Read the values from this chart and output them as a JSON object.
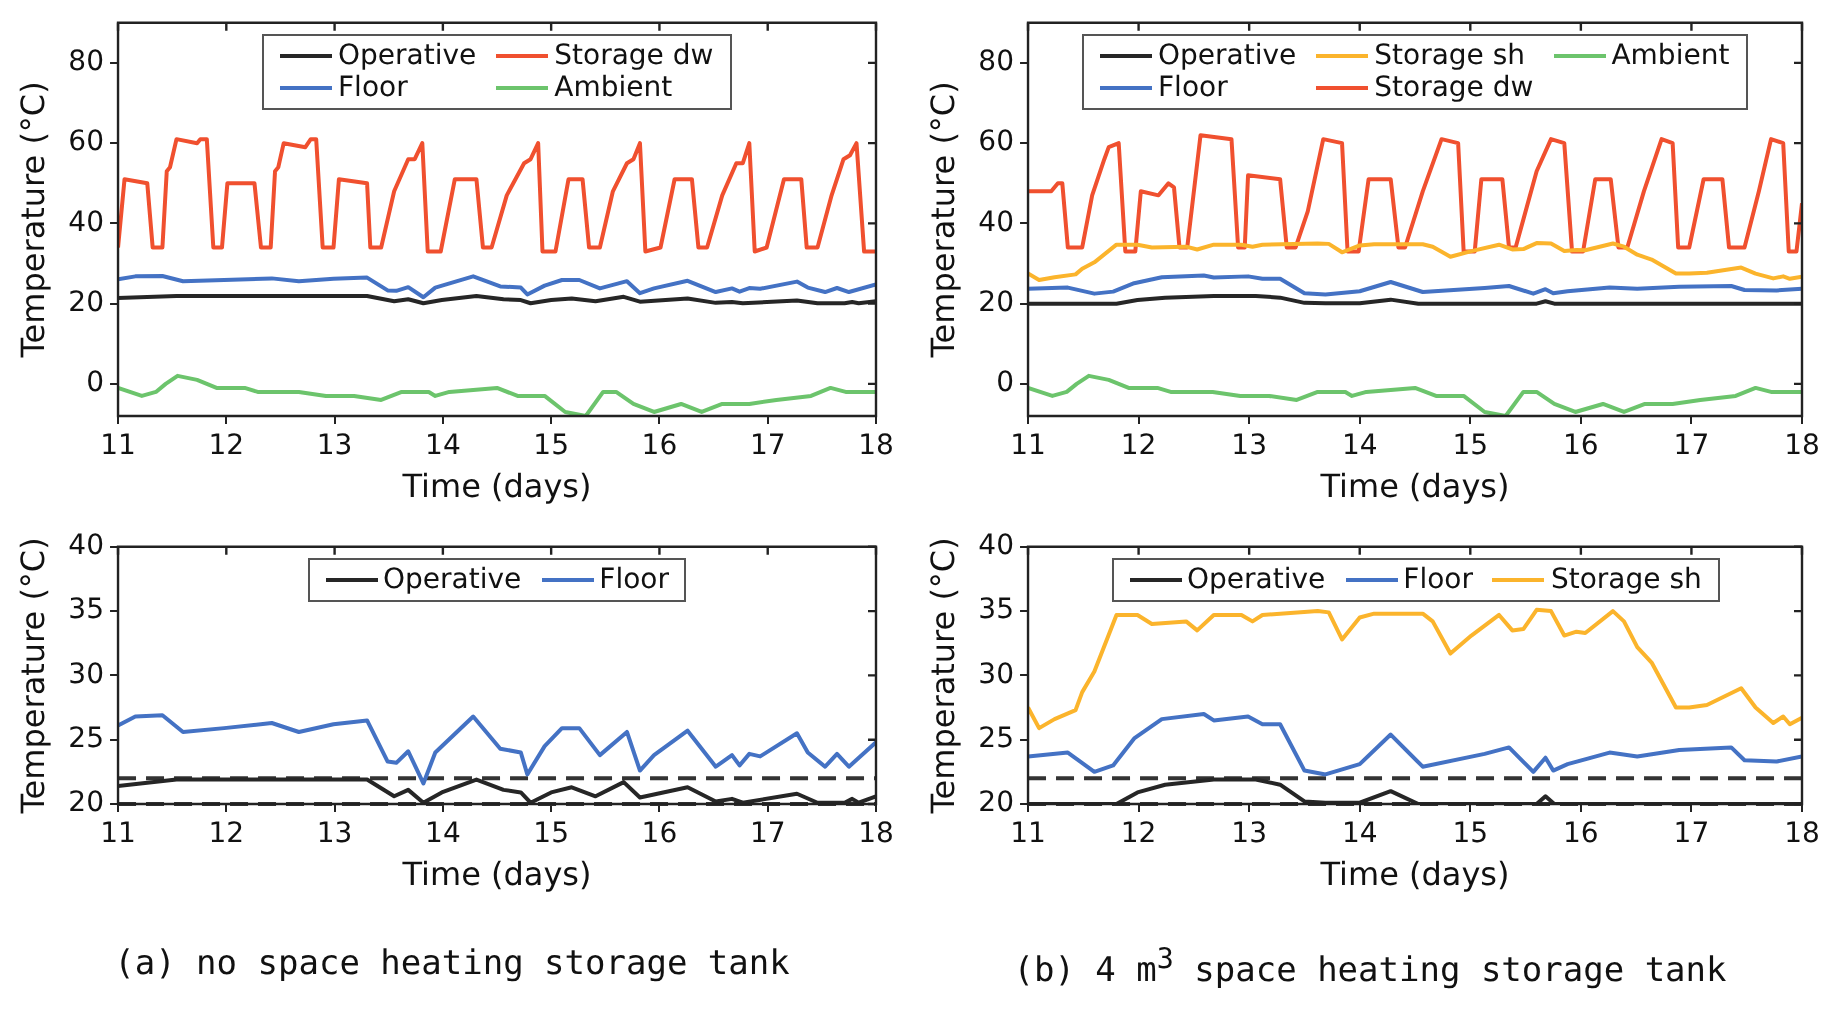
{
  "chart_data": [
    {
      "type": "line",
      "xlabel": "Time (days)",
      "ylabel": "Temperature (°C)",
      "xlim": [
        11,
        18
      ],
      "xticks": [
        11,
        12,
        13,
        14,
        15,
        16,
        17,
        18
      ],
      "ylim": [
        -8,
        90
      ],
      "yticks": [
        0,
        20,
        40,
        60,
        80
      ],
      "grid": false,
      "legend": "top",
      "line_style": "solid",
      "marker": "none",
      "series": [
        {
          "name": "Operative",
          "color": "#262626",
          "x": [
            11.0,
            11.54,
            13.3,
            13.55,
            13.68,
            13.82,
            13.99,
            14.31,
            14.56,
            14.72,
            14.81,
            15.0,
            15.19,
            15.41,
            15.67,
            15.82,
            16.26,
            16.52,
            16.67,
            16.77,
            17.27,
            17.46,
            17.71,
            17.78,
            17.84,
            18.0
          ],
          "values": [
            21.4,
            21.9,
            21.9,
            20.6,
            21.1,
            20.1,
            20.9,
            21.9,
            21.1,
            20.9,
            20.1,
            20.9,
            21.3,
            20.6,
            21.7,
            20.5,
            21.3,
            20.2,
            20.4,
            20.1,
            20.8,
            20.1,
            20.1,
            20.4,
            20.1,
            20.6
          ]
        },
        {
          "name": "Floor",
          "color": "#4472c4",
          "x": [
            11.0,
            11.16,
            11.41,
            11.6,
            11.98,
            12.42,
            12.67,
            12.99,
            13.3,
            13.49,
            13.57,
            13.68,
            13.82,
            13.93,
            14.28,
            14.53,
            14.72,
            14.78,
            14.94,
            15.1,
            15.26,
            15.45,
            15.7,
            15.82,
            15.95,
            16.26,
            16.52,
            16.67,
            16.74,
            16.83,
            16.93,
            17.27,
            17.37,
            17.53,
            17.64,
            17.75,
            18.0
          ],
          "values": [
            26.1,
            26.8,
            26.9,
            25.6,
            25.9,
            26.3,
            25.6,
            26.2,
            26.5,
            23.3,
            23.2,
            24.1,
            21.6,
            24.0,
            26.8,
            24.3,
            24.0,
            22.3,
            24.5,
            25.9,
            25.9,
            23.8,
            25.6,
            22.6,
            23.8,
            25.7,
            22.9,
            23.8,
            23.0,
            23.9,
            23.7,
            25.5,
            24.0,
            22.9,
            23.9,
            22.9,
            24.8
          ]
        },
        {
          "name": "Storage dw",
          "color": "#f0502f",
          "x": [
            11.0,
            11.06,
            11.27,
            11.32,
            11.41,
            11.45,
            11.48,
            11.54,
            11.73,
            11.76,
            11.82,
            11.88,
            11.96,
            12.01,
            12.26,
            12.32,
            12.41,
            12.45,
            12.48,
            12.53,
            12.73,
            12.78,
            12.83,
            12.89,
            12.99,
            13.04,
            13.3,
            13.33,
            13.43,
            13.55,
            13.68,
            13.74,
            13.81,
            13.86,
            13.98,
            14.11,
            14.31,
            14.37,
            14.45,
            14.59,
            14.75,
            14.81,
            14.88,
            14.92,
            15.04,
            15.16,
            15.29,
            15.35,
            15.45,
            15.57,
            15.7,
            15.76,
            15.82,
            15.87,
            16.01,
            16.14,
            16.3,
            16.36,
            16.44,
            16.58,
            16.71,
            16.77,
            16.83,
            16.88,
            16.99,
            17.15,
            17.31,
            17.36,
            17.46,
            17.59,
            17.7,
            17.76,
            17.82,
            17.89,
            18.0
          ],
          "values": [
            34,
            51,
            50,
            34,
            34,
            53,
            54,
            61,
            60,
            61,
            61,
            34,
            34,
            50,
            50,
            34,
            34,
            53,
            54,
            60,
            59,
            61,
            61,
            34,
            34,
            51,
            50,
            34,
            34,
            48,
            56,
            56,
            60,
            33,
            33,
            51,
            51,
            34,
            34,
            47,
            55,
            56,
            60,
            33,
            33,
            51,
            51,
            34,
            34,
            48,
            55,
            56,
            60,
            33,
            34,
            51,
            51,
            34,
            34,
            47,
            55,
            55,
            60,
            33,
            34,
            51,
            51,
            34,
            34,
            47,
            56,
            57,
            60,
            33,
            33
          ]
        },
        {
          "name": "Ambient",
          "color": "#6cc46c",
          "x": [
            11.0,
            11.22,
            11.35,
            11.44,
            11.55,
            11.73,
            11.91,
            12.17,
            12.29,
            12.67,
            12.92,
            13.18,
            13.43,
            13.62,
            13.87,
            13.93,
            14.06,
            14.5,
            14.69,
            14.94,
            15.13,
            15.32,
            15.48,
            15.6,
            15.76,
            15.95,
            16.2,
            16.39,
            16.58,
            16.83,
            17.08,
            17.4,
            17.58,
            17.72,
            18.0
          ],
          "values": [
            -1,
            -3,
            -2,
            0,
            2,
            1,
            -1,
            -1,
            -2,
            -2,
            -3,
            -3,
            -4,
            -2,
            -2,
            -3,
            -2,
            -1,
            -3,
            -3,
            -7,
            -8,
            -2,
            -2,
            -5,
            -7,
            -5,
            -7,
            -5,
            -5,
            -4,
            -3,
            -1,
            -2,
            -2
          ]
        }
      ]
    },
    {
      "type": "line",
      "xlabel": "Time (days)",
      "ylabel": "Temperature (°C)",
      "xlim": [
        11,
        18
      ],
      "xticks": [
        11,
        12,
        13,
        14,
        15,
        16,
        17,
        18
      ],
      "ylim": [
        -8,
        90
      ],
      "yticks": [
        0,
        20,
        40,
        60,
        80
      ],
      "grid": false,
      "legend": "top",
      "line_style": "solid",
      "marker": "none",
      "series": [
        {
          "name": "Operative",
          "color": "#262626",
          "x": [
            11.0,
            11.8,
            11.99,
            12.24,
            12.68,
            13.06,
            13.28,
            13.5,
            13.69,
            14.0,
            14.28,
            14.53,
            15.6,
            15.68,
            15.76,
            18.0
          ],
          "values": [
            20.0,
            20.0,
            20.9,
            21.5,
            21.9,
            21.9,
            21.5,
            20.2,
            20.1,
            20.1,
            21.0,
            20.0,
            20.0,
            20.6,
            20.0,
            20.0
          ]
        },
        {
          "name": "Floor",
          "color": "#4472c4",
          "x": [
            11.0,
            11.36,
            11.6,
            11.77,
            11.96,
            12.21,
            12.59,
            12.68,
            12.99,
            13.12,
            13.28,
            13.5,
            13.69,
            14.0,
            14.28,
            14.57,
            15.13,
            15.35,
            15.57,
            15.68,
            15.75,
            15.88,
            16.26,
            16.51,
            16.89,
            17.36,
            17.48,
            17.77,
            18.0
          ],
          "values": [
            23.7,
            24.0,
            22.5,
            23.0,
            25.1,
            26.6,
            27.0,
            26.5,
            26.8,
            26.2,
            26.2,
            22.6,
            22.3,
            23.1,
            25.4,
            22.9,
            23.9,
            24.4,
            22.5,
            23.6,
            22.6,
            23.1,
            24.0,
            23.7,
            24.2,
            24.4,
            23.4,
            23.3,
            23.7
          ]
        },
        {
          "name": "Storage sh",
          "color": "#fbb42c",
          "x": [
            11.0,
            11.1,
            11.24,
            11.43,
            11.49,
            11.6,
            11.8,
            11.99,
            12.12,
            12.43,
            12.53,
            12.68,
            12.93,
            13.03,
            13.12,
            13.62,
            13.72,
            13.84,
            14.0,
            14.13,
            14.57,
            14.66,
            14.82,
            15.01,
            15.26,
            15.38,
            15.48,
            15.6,
            15.73,
            15.85,
            15.96,
            16.04,
            16.29,
            16.39,
            16.51,
            16.64,
            16.86,
            16.98,
            17.14,
            17.45,
            17.58,
            17.74,
            17.83,
            17.89,
            18.0
          ],
          "values": [
            27.5,
            25.9,
            26.6,
            27.3,
            28.7,
            30.3,
            34.7,
            34.7,
            34.0,
            34.2,
            33.5,
            34.7,
            34.7,
            34.2,
            34.7,
            35.0,
            34.9,
            32.8,
            34.5,
            34.8,
            34.8,
            34.2,
            31.7,
            33.1,
            34.7,
            33.5,
            33.6,
            35.1,
            35.0,
            33.1,
            33.4,
            33.3,
            35.0,
            34.2,
            32.2,
            31.0,
            27.5,
            27.5,
            27.7,
            29.0,
            27.5,
            26.3,
            26.8,
            26.2,
            26.7
          ]
        },
        {
          "name": "Storage dw",
          "color": "#f0502f",
          "x": [
            11.0,
            11.21,
            11.27,
            11.31,
            11.36,
            11.49,
            11.58,
            11.69,
            11.73,
            11.82,
            11.88,
            11.97,
            12.02,
            12.18,
            12.27,
            12.32,
            12.37,
            12.44,
            12.56,
            12.84,
            12.9,
            12.96,
            12.99,
            13.28,
            13.34,
            13.42,
            13.53,
            13.67,
            13.84,
            13.89,
            13.99,
            14.08,
            14.28,
            14.35,
            14.41,
            14.57,
            14.74,
            14.89,
            14.94,
            15.04,
            15.1,
            15.29,
            15.35,
            15.41,
            15.6,
            15.73,
            15.85,
            15.92,
            16.02,
            16.13,
            16.27,
            16.34,
            16.42,
            16.57,
            16.73,
            16.83,
            16.88,
            16.98,
            17.11,
            17.28,
            17.34,
            17.48,
            17.61,
            17.72,
            17.83,
            17.88,
            17.95,
            18.0
          ],
          "values": [
            48,
            48,
            50,
            50,
            34,
            34,
            47,
            56,
            59,
            60,
            33,
            33,
            48,
            47,
            50,
            49,
            34,
            34,
            62,
            61,
            34,
            34,
            52,
            51,
            34,
            34,
            43,
            61,
            60,
            33,
            33,
            51,
            51,
            34,
            34,
            48,
            61,
            60,
            33,
            33,
            51,
            51,
            34,
            34,
            53,
            61,
            60,
            33,
            33,
            51,
            51,
            34,
            34,
            48,
            61,
            60,
            34,
            34,
            51,
            51,
            34,
            34,
            48,
            61,
            60,
            33,
            33,
            45
          ]
        },
        {
          "name": "Ambient",
          "color": "#6cc46c",
          "x": [
            11.0,
            11.22,
            11.35,
            11.44,
            11.55,
            11.73,
            11.91,
            12.17,
            12.29,
            12.67,
            12.92,
            13.18,
            13.43,
            13.62,
            13.87,
            13.93,
            14.06,
            14.5,
            14.69,
            14.94,
            15.13,
            15.32,
            15.48,
            15.6,
            15.76,
            15.95,
            16.2,
            16.39,
            16.58,
            16.83,
            17.08,
            17.4,
            17.58,
            17.72,
            18.0
          ],
          "values": [
            -1,
            -3,
            -2,
            0,
            2,
            1,
            -1,
            -1,
            -2,
            -2,
            -3,
            -3,
            -4,
            -2,
            -2,
            -3,
            -2,
            -1,
            -3,
            -3,
            -7,
            -8,
            -2,
            -2,
            -5,
            -7,
            -5,
            -7,
            -5,
            -5,
            -4,
            -3,
            -1,
            -2,
            -2
          ]
        }
      ]
    },
    {
      "type": "line",
      "xlabel": "Time (days)",
      "ylabel": "Temperature (°C)",
      "xlim": [
        11,
        18
      ],
      "xticks": [
        11,
        12,
        13,
        14,
        15,
        16,
        17,
        18
      ],
      "ylim": [
        20,
        40
      ],
      "yticks": [
        20,
        25,
        30,
        35,
        40
      ],
      "grid": false,
      "legend": "top",
      "line_style": "solid",
      "marker": "none",
      "ref_lines": [
        {
          "axis": "y",
          "value": 22,
          "color": "#333333",
          "line_style": "dashed"
        },
        {
          "axis": "y",
          "value": 20,
          "color": "#333333",
          "line_style": "dashed"
        }
      ],
      "annotations": [
        "(a) no space heating storage tank"
      ],
      "series": [
        {
          "name": "Operative",
          "color": "#262626",
          "x": [
            11.0,
            11.54,
            13.3,
            13.55,
            13.68,
            13.82,
            13.99,
            14.31,
            14.56,
            14.72,
            14.81,
            15.0,
            15.19,
            15.41,
            15.67,
            15.82,
            16.26,
            16.52,
            16.67,
            16.77,
            17.27,
            17.46,
            17.71,
            17.78,
            17.84,
            18.0
          ],
          "values": [
            21.4,
            21.9,
            21.9,
            20.6,
            21.1,
            20.1,
            20.9,
            21.9,
            21.1,
            20.9,
            20.1,
            20.9,
            21.3,
            20.6,
            21.7,
            20.5,
            21.3,
            20.2,
            20.4,
            20.1,
            20.8,
            20.1,
            20.1,
            20.4,
            20.1,
            20.6
          ]
        },
        {
          "name": "Floor",
          "color": "#4472c4",
          "x": [
            11.0,
            11.16,
            11.41,
            11.6,
            11.98,
            12.42,
            12.67,
            12.99,
            13.3,
            13.49,
            13.57,
            13.68,
            13.82,
            13.93,
            14.28,
            14.53,
            14.72,
            14.78,
            14.94,
            15.1,
            15.26,
            15.45,
            15.7,
            15.82,
            15.95,
            16.26,
            16.52,
            16.67,
            16.74,
            16.83,
            16.93,
            17.27,
            17.37,
            17.53,
            17.64,
            17.75,
            18.0
          ],
          "values": [
            26.1,
            26.8,
            26.9,
            25.6,
            25.9,
            26.3,
            25.6,
            26.2,
            26.5,
            23.3,
            23.2,
            24.1,
            21.6,
            24.0,
            26.8,
            24.3,
            24.0,
            22.3,
            24.5,
            25.9,
            25.9,
            23.8,
            25.6,
            22.6,
            23.8,
            25.7,
            22.9,
            23.8,
            23.0,
            23.9,
            23.7,
            25.5,
            24.0,
            22.9,
            23.9,
            22.9,
            24.8
          ]
        }
      ]
    },
    {
      "type": "line",
      "xlabel": "Time (days)",
      "ylabel": "Temperature (°C)",
      "xlim": [
        11,
        18
      ],
      "xticks": [
        11,
        12,
        13,
        14,
        15,
        16,
        17,
        18
      ],
      "ylim": [
        20,
        40
      ],
      "yticks": [
        20,
        25,
        30,
        35,
        40
      ],
      "grid": false,
      "legend": "top",
      "line_style": "solid",
      "marker": "none",
      "ref_lines": [
        {
          "axis": "y",
          "value": 22,
          "color": "#333333",
          "line_style": "dashed"
        },
        {
          "axis": "y",
          "value": 20,
          "color": "#333333",
          "line_style": "dashed"
        }
      ],
      "annotations": [
        "(b) 4 m$^{3}$ space heating storage tank"
      ],
      "series": [
        {
          "name": "Operative",
          "color": "#262626",
          "x": [
            11.0,
            11.8,
            11.99,
            12.24,
            12.68,
            13.06,
            13.28,
            13.5,
            13.69,
            14.0,
            14.28,
            14.53,
            15.6,
            15.68,
            15.76,
            18.0
          ],
          "values": [
            20.0,
            20.0,
            20.9,
            21.5,
            21.9,
            21.9,
            21.5,
            20.2,
            20.1,
            20.1,
            21.0,
            20.0,
            20.0,
            20.6,
            20.0,
            20.0
          ]
        },
        {
          "name": "Floor",
          "color": "#4472c4",
          "x": [
            11.0,
            11.36,
            11.6,
            11.77,
            11.96,
            12.21,
            12.59,
            12.68,
            12.99,
            13.12,
            13.28,
            13.5,
            13.69,
            14.0,
            14.28,
            14.57,
            15.13,
            15.35,
            15.57,
            15.68,
            15.75,
            15.88,
            16.26,
            16.51,
            16.89,
            17.36,
            17.48,
            17.77,
            18.0
          ],
          "values": [
            23.7,
            24.0,
            22.5,
            23.0,
            25.1,
            26.6,
            27.0,
            26.5,
            26.8,
            26.2,
            26.2,
            22.6,
            22.3,
            23.1,
            25.4,
            22.9,
            23.9,
            24.4,
            22.5,
            23.6,
            22.6,
            23.1,
            24.0,
            23.7,
            24.2,
            24.4,
            23.4,
            23.3,
            23.7
          ]
        },
        {
          "name": "Storage sh",
          "color": "#fbb42c",
          "x": [
            11.0,
            11.1,
            11.24,
            11.43,
            11.49,
            11.6,
            11.8,
            11.99,
            12.12,
            12.43,
            12.53,
            12.68,
            12.93,
            13.03,
            13.12,
            13.62,
            13.72,
            13.84,
            14.0,
            14.13,
            14.57,
            14.66,
            14.82,
            15.01,
            15.26,
            15.38,
            15.48,
            15.6,
            15.73,
            15.85,
            15.96,
            16.04,
            16.29,
            16.39,
            16.51,
            16.64,
            16.86,
            16.98,
            17.14,
            17.45,
            17.58,
            17.74,
            17.83,
            17.89,
            18.0
          ],
          "values": [
            27.5,
            25.9,
            26.6,
            27.3,
            28.7,
            30.3,
            34.7,
            34.7,
            34.0,
            34.2,
            33.5,
            34.7,
            34.7,
            34.2,
            34.7,
            35.0,
            34.9,
            32.8,
            34.5,
            34.8,
            34.8,
            34.2,
            31.7,
            33.1,
            34.7,
            33.5,
            33.6,
            35.1,
            35.0,
            33.1,
            33.4,
            33.3,
            35.0,
            34.2,
            32.2,
            31.0,
            27.5,
            27.5,
            27.7,
            29.0,
            27.5,
            26.3,
            26.8,
            26.2,
            26.7
          ]
        }
      ]
    }
  ]
}
